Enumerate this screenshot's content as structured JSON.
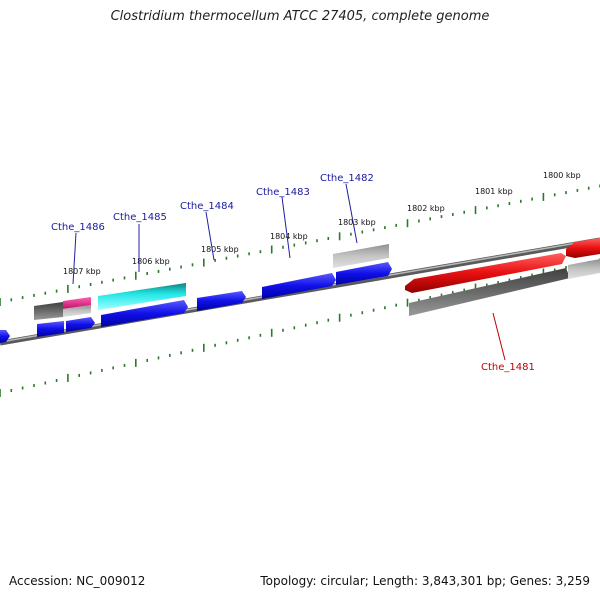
{
  "header": {
    "title": "Clostridium thermocellum ATCC 27405, complete genome"
  },
  "footer": {
    "accession": "Accession: NC_009012",
    "topology": "Topology: circular; Length: 3,843,301 bp; Genes: 3,259"
  },
  "scale_labels": [
    "1807 kbp",
    "1806 kbp",
    "1805 kbp",
    "1804 kbp",
    "1803 kbp",
    "1802 kbp",
    "1801 kbp",
    "1800 kbp"
  ],
  "gene_labels": [
    "Cthe_1486",
    "Cthe_1485",
    "Cthe_1484",
    "Cthe_1483",
    "Cthe_1482",
    "Cthe_1481"
  ],
  "colors": {
    "forward_gene": "#1414e6",
    "highlight_red": "#e81010",
    "highlight_cyan": "#22e6e6",
    "highlight_magenta": "#e0208a",
    "pseudo_gray": "#a8a8a8",
    "dark_gray": "#606060",
    "tick_green": "#2a7a2a",
    "label_blue": "#1a1aa0",
    "label_red": "#c00000"
  }
}
